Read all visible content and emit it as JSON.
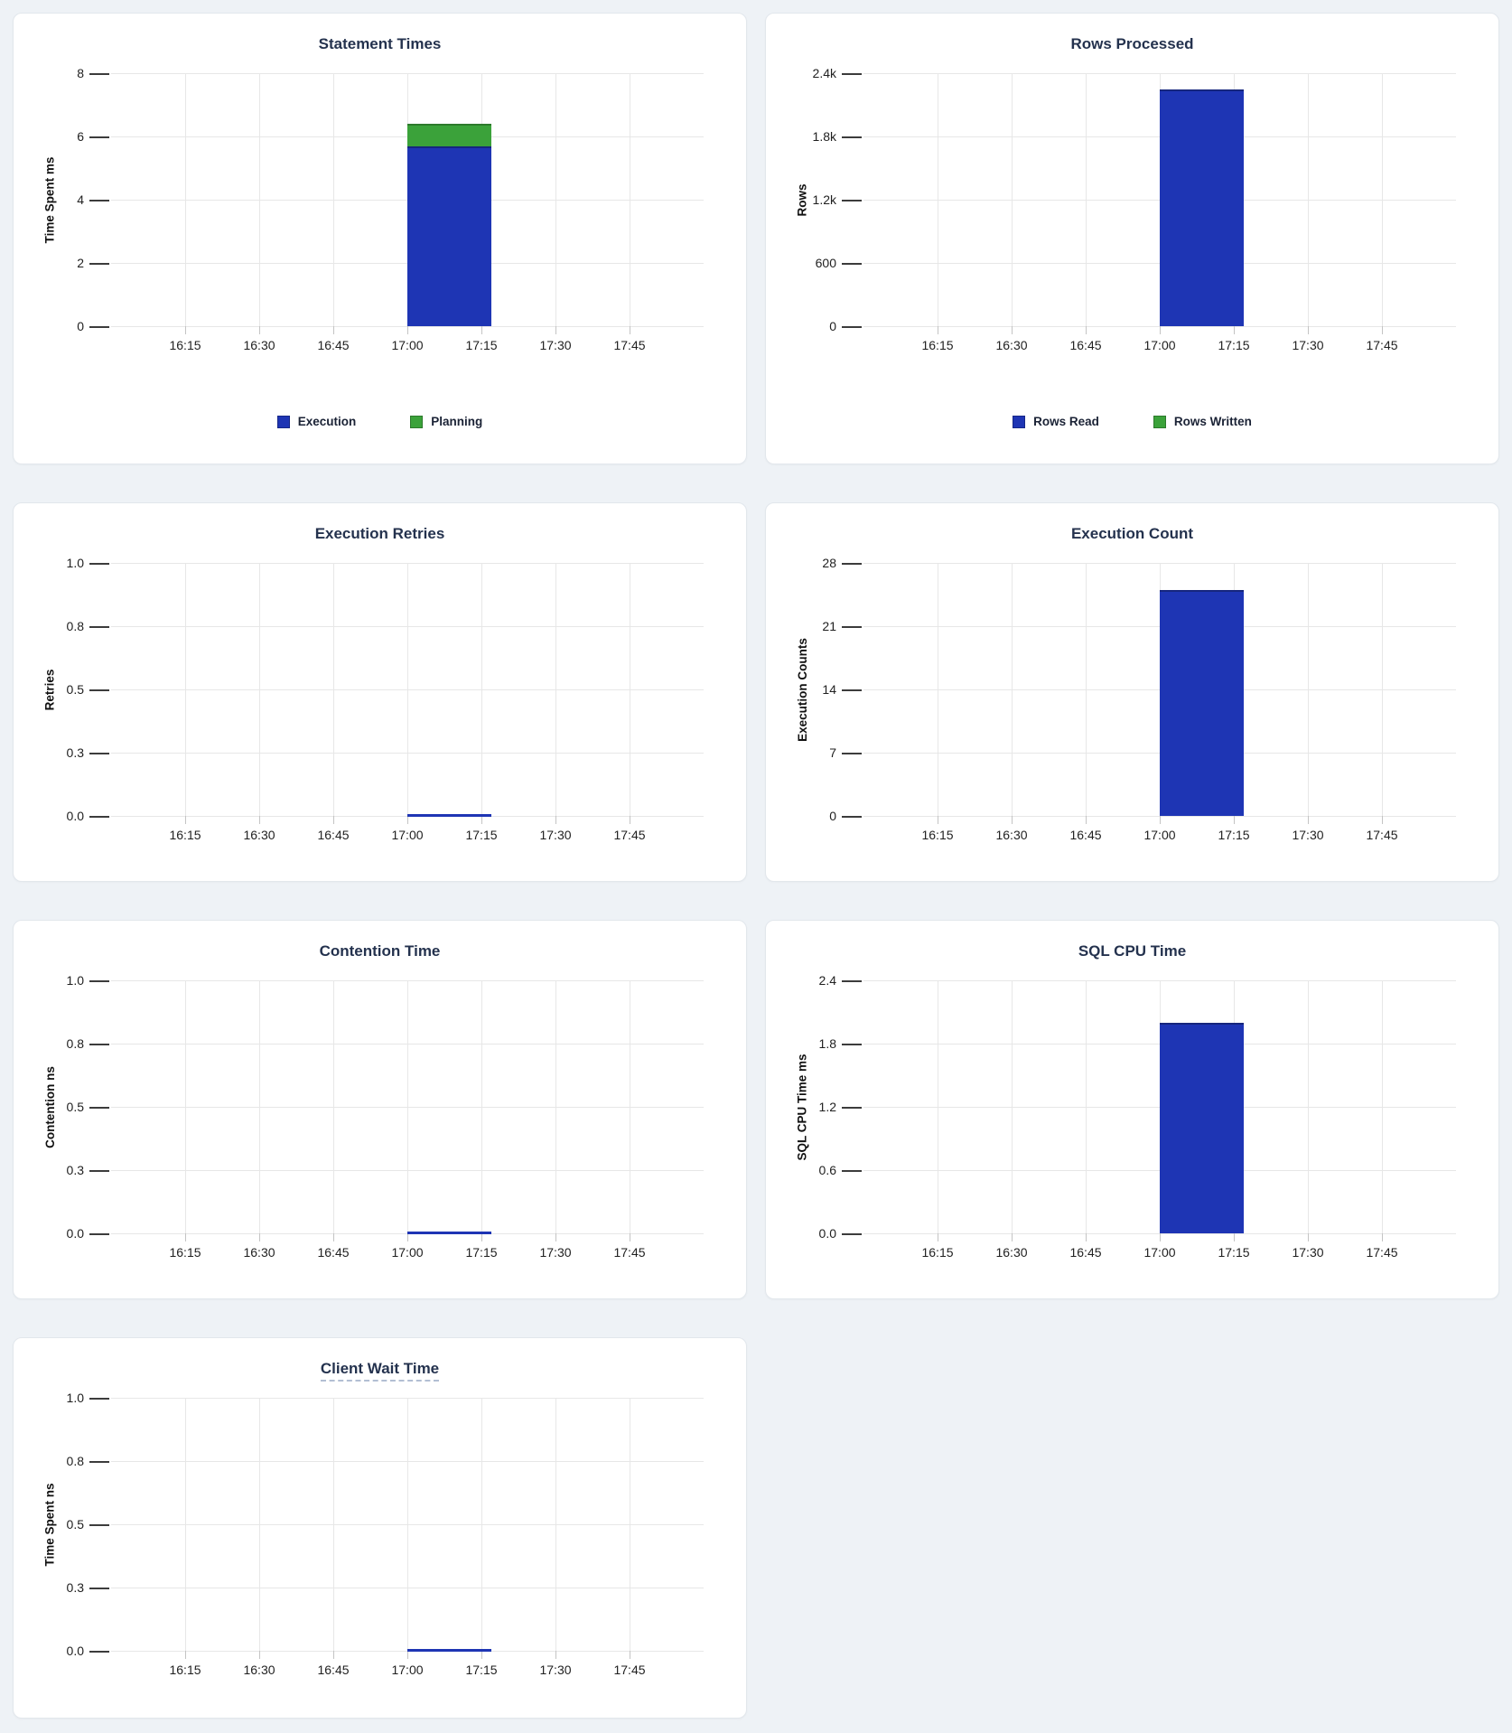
{
  "colors": {
    "blue": "#1e35b4",
    "green": "#3ba23a",
    "title": "#24324e",
    "grid": "#e7e7e7",
    "page_background": "#eef2f6"
  },
  "x_axis": {
    "start": "16:00",
    "end": "18:00",
    "ticks": [
      "16:15",
      "16:30",
      "16:45",
      "17:00",
      "17:15",
      "17:30",
      "17:45"
    ]
  },
  "active_window": {
    "start": "17:00",
    "end": "17:17"
  },
  "chart_data": [
    {
      "type": "bar",
      "title": "Statement Times",
      "ylabel": "Time Spent ms",
      "ymax": 8,
      "ylim": [
        0,
        8
      ],
      "y_tick_labels": [
        "0",
        "2",
        "4",
        "6",
        "8"
      ],
      "grid": true,
      "stacked": true,
      "x_window": [
        "17:00",
        "17:17"
      ],
      "series": [
        {
          "name": "Execution",
          "color": "blue",
          "value": 5.7
        },
        {
          "name": "Planning",
          "color": "green",
          "value": 0.7
        }
      ],
      "legend": [
        {
          "label": "Execution",
          "color": "blue"
        },
        {
          "label": "Planning",
          "color": "green"
        }
      ],
      "legend_position": "bottom"
    },
    {
      "type": "bar",
      "title": "Rows Processed",
      "ylabel": "Rows",
      "ymax": 2400,
      "ylim": [
        0,
        2400
      ],
      "y_tick_labels": [
        "0",
        "600",
        "1.2k",
        "1.8k",
        "2.4k"
      ],
      "grid": true,
      "stacked": true,
      "x_window": [
        "17:00",
        "17:17"
      ],
      "series": [
        {
          "name": "Rows Read",
          "color": "blue",
          "value": 2250
        },
        {
          "name": "Rows Written",
          "color": "green",
          "value": 0
        }
      ],
      "legend": [
        {
          "label": "Rows Read",
          "color": "blue"
        },
        {
          "label": "Rows Written",
          "color": "green"
        }
      ],
      "legend_position": "bottom"
    },
    {
      "type": "bar",
      "title": "Execution Retries",
      "ylabel": "Retries",
      "ymax": 1,
      "ylim": [
        0,
        1
      ],
      "y_tick_labels": [
        "0.0",
        "0.3",
        "0.5",
        "0.8",
        "1.0"
      ],
      "grid": true,
      "x_window": [
        "17:00",
        "17:17"
      ],
      "series": [
        {
          "name": "Retries",
          "color": "blue",
          "value": 0
        }
      ],
      "legend": null
    },
    {
      "type": "bar",
      "title": "Execution Count",
      "ylabel": "Execution Counts",
      "ymax": 28,
      "ylim": [
        0,
        28
      ],
      "y_tick_labels": [
        "0",
        "7",
        "14",
        "21",
        "28"
      ],
      "grid": true,
      "x_window": [
        "17:00",
        "17:17"
      ],
      "series": [
        {
          "name": "Execution Count",
          "color": "blue",
          "value": 25
        }
      ],
      "legend": null
    },
    {
      "type": "bar",
      "title": "Contention Time",
      "ylabel": "Contention ns",
      "ymax": 1,
      "ylim": [
        0,
        1
      ],
      "y_tick_labels": [
        "0.0",
        "0.3",
        "0.5",
        "0.8",
        "1.0"
      ],
      "grid": true,
      "x_window": [
        "17:00",
        "17:17"
      ],
      "series": [
        {
          "name": "Contention",
          "color": "blue",
          "value": 0
        }
      ],
      "legend": null
    },
    {
      "type": "bar",
      "title": "SQL CPU Time",
      "ylabel": "SQL CPU Time ms",
      "ymax": 2.4,
      "ylim": [
        0,
        2.4
      ],
      "y_tick_labels": [
        "0.0",
        "0.6",
        "1.2",
        "1.8",
        "2.4"
      ],
      "grid": true,
      "x_window": [
        "17:00",
        "17:17"
      ],
      "series": [
        {
          "name": "SQL CPU Time",
          "color": "blue",
          "value": 2.0
        }
      ],
      "legend": null
    },
    {
      "type": "bar",
      "title": "Client Wait Time",
      "title_underlined": true,
      "ylabel": "Time Spent ns",
      "ymax": 1,
      "ylim": [
        0,
        1
      ],
      "y_tick_labels": [
        "0.0",
        "0.3",
        "0.5",
        "0.8",
        "1.0"
      ],
      "grid": true,
      "x_window": [
        "17:00",
        "17:17"
      ],
      "series": [
        {
          "name": "Client Wait Time",
          "color": "blue",
          "value": 0
        }
      ],
      "legend": null
    }
  ]
}
